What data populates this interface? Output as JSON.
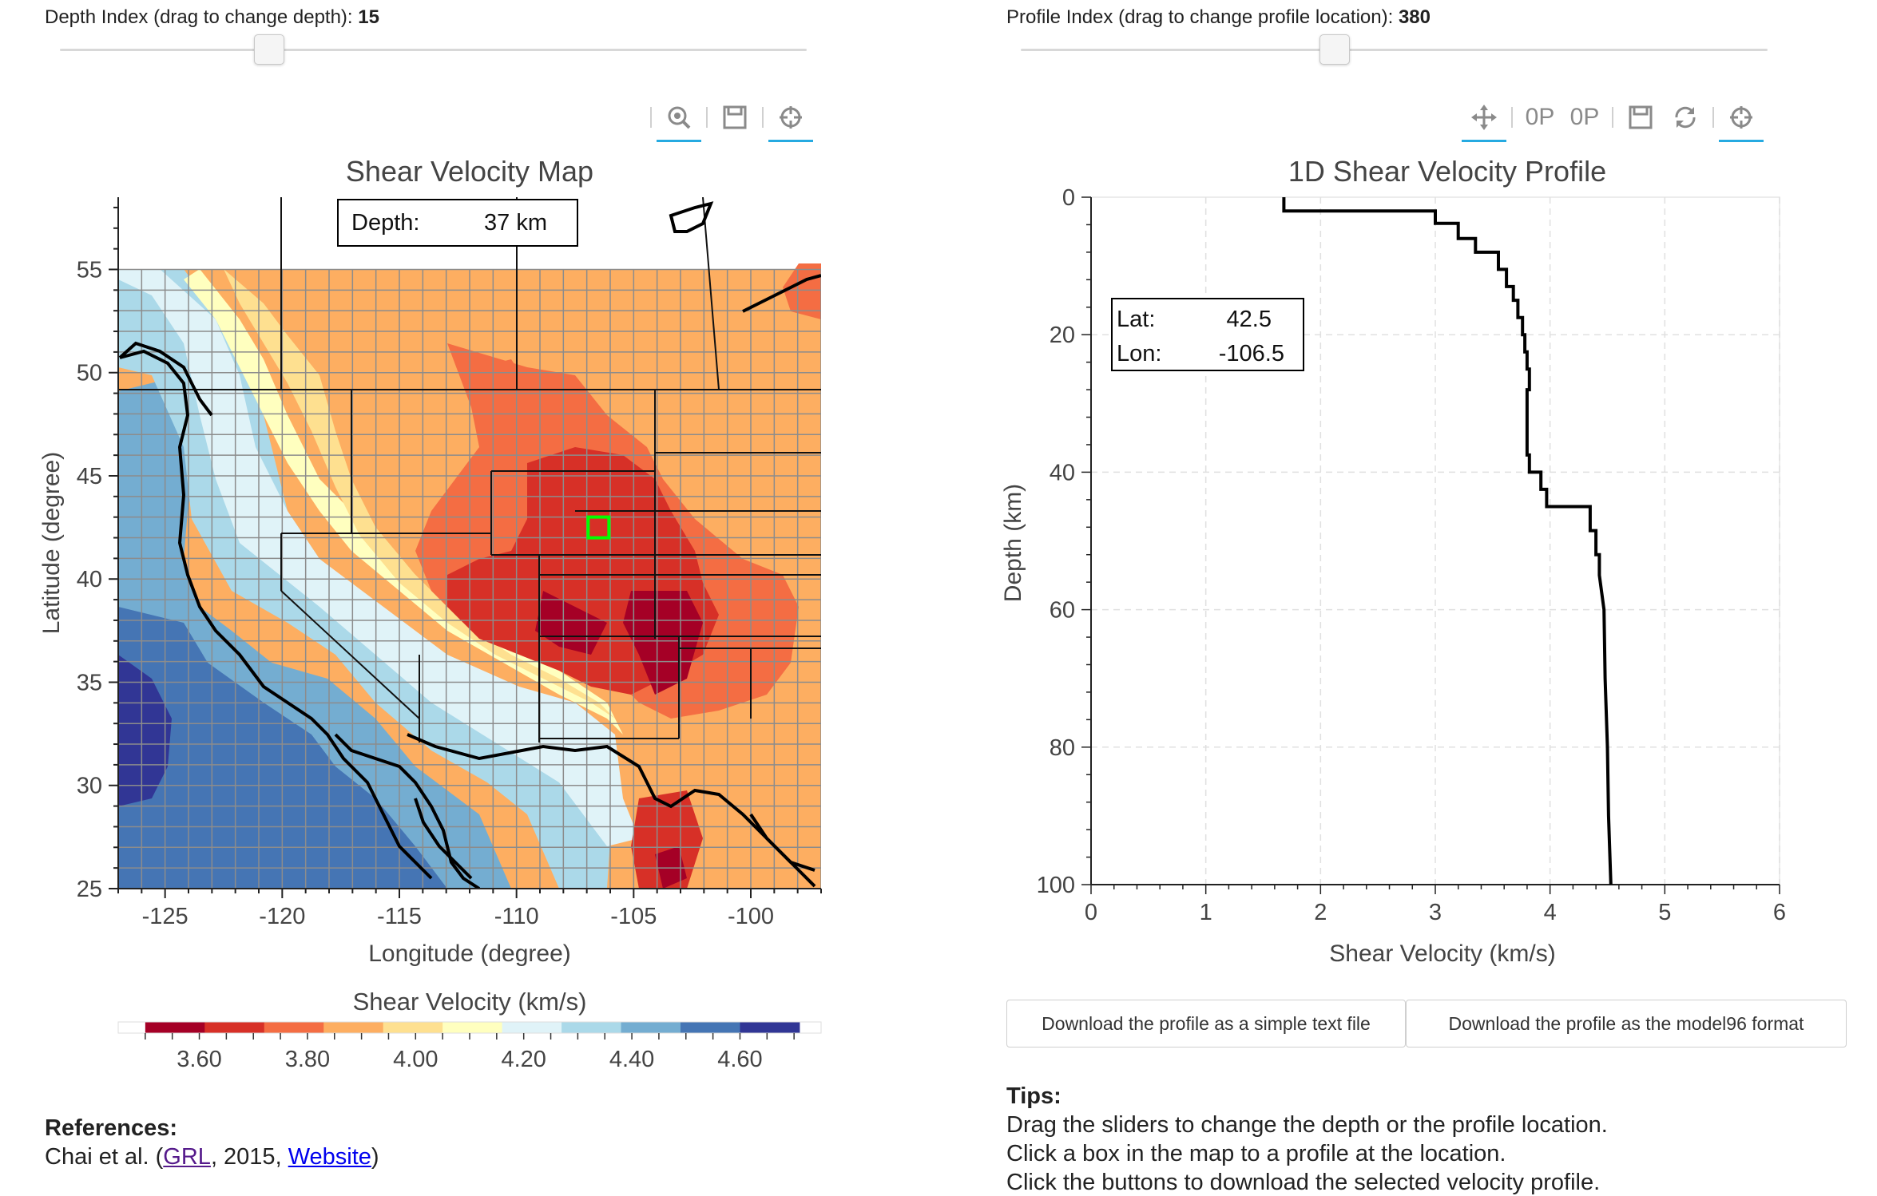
{
  "depth_slider": {
    "label": "Depth Index (drag to change depth):",
    "value": "15",
    "fraction": 0.28
  },
  "profile_slider": {
    "label": "Profile Index (drag to change profile location):",
    "value": "380",
    "fraction": 0.42
  },
  "map_toolbar": {
    "icons": [
      "wheel-zoom-icon",
      "save-icon",
      "crosshair-icon"
    ]
  },
  "profile_toolbar": {
    "icons": [
      "pan-icon",
      "xzoom-in-icon",
      "xzoom-out-icon",
      "save-icon",
      "reset-icon",
      "crosshair-icon"
    ],
    "zoom_glyph": "0P"
  },
  "map": {
    "title": "Shear Velocity Map",
    "depth_label": "Depth:",
    "depth_value": "37 km",
    "xlabel": "Longitude (degree)",
    "ylabel": "Latitude (degree)",
    "xticks": [
      "-125",
      "-120",
      "-115",
      "-110",
      "-105",
      "-100"
    ],
    "yticks": [
      "55",
      "50",
      "45",
      "40",
      "35",
      "30",
      "25"
    ],
    "selected_location": {
      "lat": 42.5,
      "lon": -106.5
    }
  },
  "colorbar": {
    "title": "Shear Velocity (km/s)",
    "ticks": [
      "3.60",
      "3.80",
      "4.00",
      "4.20",
      "4.40",
      "4.60"
    ],
    "colors": [
      "#a50026",
      "#d73027",
      "#f46d43",
      "#fdae61",
      "#fee090",
      "#ffffbf",
      "#e0f3f8",
      "#abd9e9",
      "#74add1",
      "#4575b4",
      "#313695"
    ]
  },
  "chart_data": {
    "type": "line",
    "title": "1D Shear Velocity Profile",
    "xlabel": "Shear Velocity (km/s)",
    "ylabel": "Depth (km)",
    "xlim": [
      0,
      6
    ],
    "ylim": [
      100,
      0
    ],
    "xticks": [
      "0",
      "1",
      "2",
      "3",
      "4",
      "5",
      "6"
    ],
    "yticks": [
      "0",
      "20",
      "40",
      "60",
      "80",
      "100"
    ],
    "series": [
      {
        "name": "profile",
        "velocity": [
          1.68,
          1.68,
          3.0,
          3.0,
          3.2,
          3.2,
          3.35,
          3.35,
          3.55,
          3.55,
          3.62,
          3.62,
          3.68,
          3.68,
          3.72,
          3.72,
          3.76,
          3.76,
          3.78,
          3.78,
          3.8,
          3.8,
          3.82,
          3.82,
          3.8,
          3.8,
          3.82,
          3.82,
          3.92,
          3.92,
          3.97,
          3.97,
          4.03,
          4.03,
          4.35,
          4.35,
          4.4,
          4.4,
          4.43,
          4.43,
          4.47,
          4.48,
          4.5,
          4.51,
          4.53
        ],
        "depth": [
          0.0,
          2.0,
          2.0,
          3.8,
          3.8,
          6.0,
          6.0,
          8.0,
          8.0,
          10.5,
          10.5,
          13.0,
          13.0,
          15.0,
          15.0,
          17.5,
          17.5,
          20.0,
          20.0,
          22.5,
          22.5,
          25.0,
          25.0,
          28.0,
          28.0,
          37.5,
          37.5,
          40.0,
          40.0,
          42.5,
          42.5,
          45.0,
          45.0,
          45.0,
          45.0,
          48.5,
          48.5,
          52.0,
          52.0,
          55.0,
          60.0,
          70.0,
          80.0,
          90.0,
          100.0
        ]
      }
    ],
    "annotation": {
      "lat_label": "Lat:",
      "lat": "42.5",
      "lon_label": "Lon:",
      "lon": "-106.5"
    }
  },
  "buttons": {
    "download_text": "Download the profile as a simple text file",
    "download_model96": "Download the profile as the model96 format"
  },
  "references": {
    "heading": "References:",
    "prefix": "Chai et al. (",
    "grl": "GRL",
    "middle": ", 2015, ",
    "website": "Website",
    "suffix": ")"
  },
  "tips": {
    "heading": "Tips:",
    "lines": [
      "Drag the sliders to change the depth or the profile location.",
      "Click a box in the map to a profile at the location.",
      "Click the buttons to download the selected velocity profile."
    ]
  }
}
